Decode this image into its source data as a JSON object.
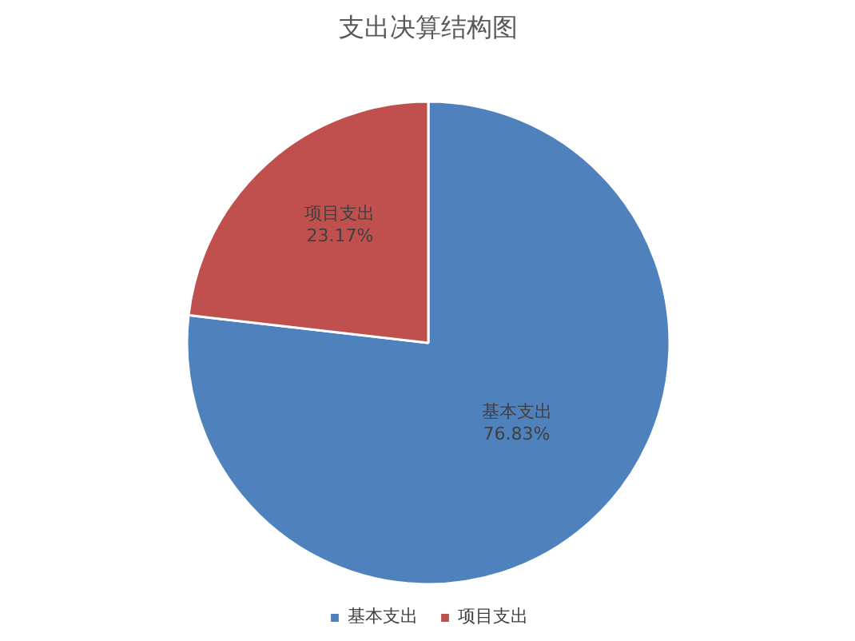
{
  "chart_data": {
    "type": "pie",
    "title": "支出决算结构图",
    "categories": [
      "基本支出",
      "项目支出"
    ],
    "values": [
      76.83,
      23.17
    ],
    "colors": [
      "#4f81bd",
      "#c0504d"
    ],
    "value_labels": [
      "76.83%",
      "23.17%"
    ],
    "legend": "bottom"
  }
}
